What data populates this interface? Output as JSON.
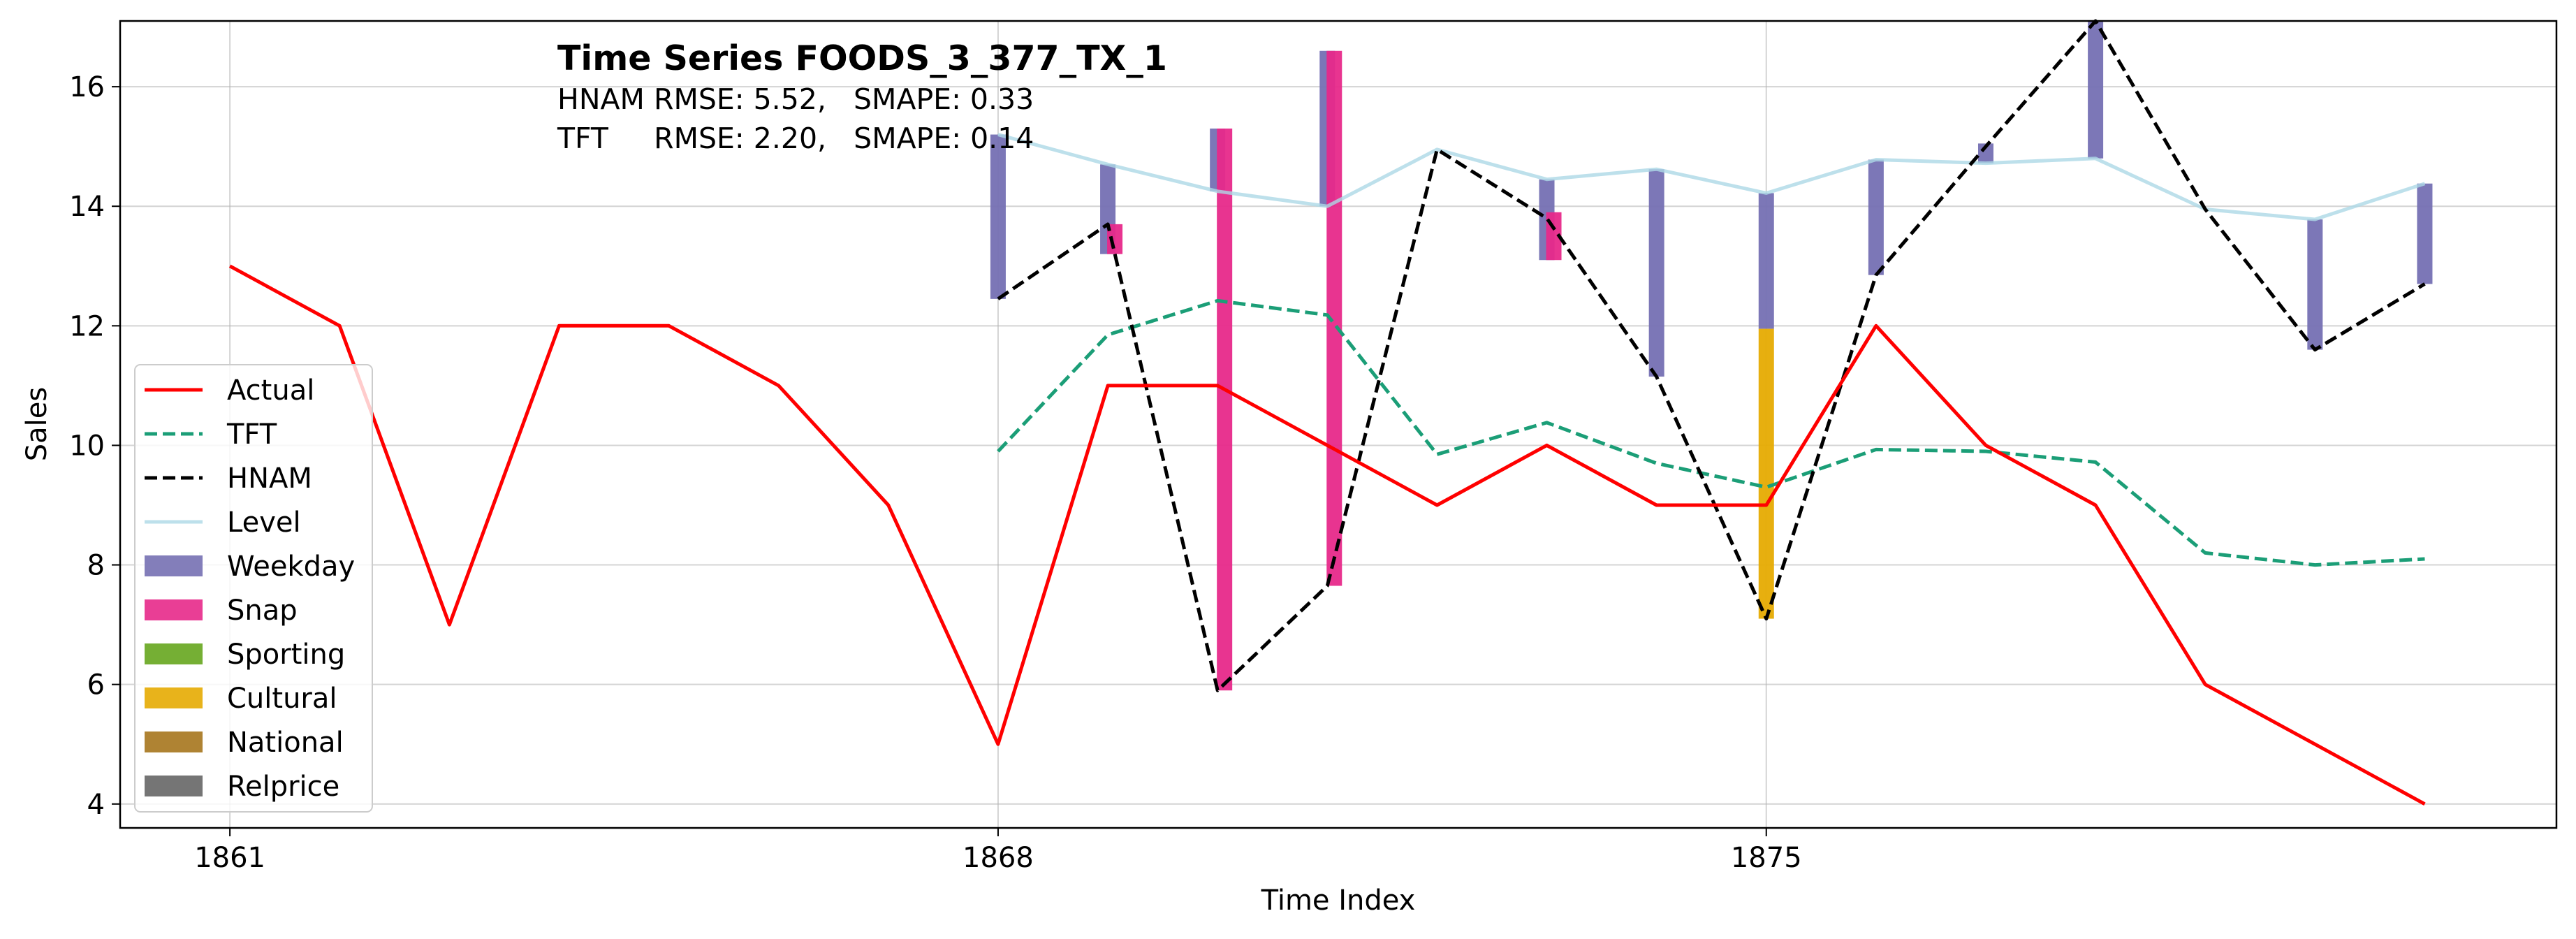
{
  "chart_data": {
    "type": "line",
    "title": "Time Series FOODS_3_377_TX_1",
    "subtitle_lines": [
      "HNAM RMSE: 5.52,   SMAPE: 0.33",
      "TFT     RMSE: 2.20,   SMAPE: 0.14"
    ],
    "xlabel": "Time Index",
    "ylabel": "Sales",
    "xlim": [
      1860.0,
      1882.2
    ],
    "ylim": [
      3.6,
      17.1
    ],
    "xticks": [
      1861,
      1868,
      1875
    ],
    "yticks": [
      4,
      6,
      8,
      10,
      12,
      14,
      16
    ],
    "grid": true,
    "legend_position": "lower-left",
    "series": [
      {
        "name": "Actual",
        "style": "solid",
        "color": "#ff0000",
        "x": [
          1861,
          1862,
          1863,
          1864,
          1865,
          1866,
          1867,
          1868,
          1869,
          1870,
          1871,
          1872,
          1873,
          1874,
          1875,
          1876,
          1877,
          1878,
          1879,
          1880,
          1881
        ],
        "y": [
          13,
          12,
          7,
          12,
          12,
          11,
          9,
          5,
          11,
          11,
          10,
          9,
          10,
          9,
          9,
          12,
          10,
          9,
          6,
          5,
          4
        ]
      },
      {
        "name": "TFT",
        "style": "dashed",
        "color": "#1b9e77",
        "x": [
          1868,
          1869,
          1870,
          1871,
          1872,
          1873,
          1874,
          1875,
          1876,
          1877,
          1878,
          1879,
          1880,
          1881
        ],
        "y": [
          9.9,
          11.85,
          12.42,
          12.18,
          9.85,
          10.38,
          9.7,
          9.3,
          9.93,
          9.9,
          9.72,
          8.2,
          8.0,
          8.1
        ]
      },
      {
        "name": "HNAM",
        "style": "dashed",
        "color": "#000000",
        "x": [
          1868,
          1869,
          1870,
          1871,
          1872,
          1873,
          1874,
          1875,
          1876,
          1877,
          1878,
          1879,
          1880,
          1881
        ],
        "y": [
          12.45,
          13.7,
          5.9,
          7.65,
          14.95,
          13.8,
          11.15,
          7.1,
          12.85,
          15.0,
          17.1,
          13.95,
          11.6,
          12.7
        ]
      },
      {
        "name": "Level",
        "style": "solid",
        "color": "#add8e6",
        "x": [
          1868,
          1869,
          1870,
          1871,
          1872,
          1873,
          1874,
          1875,
          1876,
          1877,
          1878,
          1879,
          1880,
          1881
        ],
        "y": [
          15.2,
          14.7,
          14.25,
          14.0,
          14.95,
          14.45,
          14.62,
          14.22,
          14.78,
          14.72,
          14.8,
          13.95,
          13.78,
          14.38
        ]
      }
    ],
    "components": [
      {
        "name": "Weekday",
        "color": "#7570b3"
      },
      {
        "name": "Snap",
        "color": "#e7298a"
      },
      {
        "name": "Sporting",
        "color": "#66a61e"
      },
      {
        "name": "Cultural",
        "color": "#e6ab02"
      },
      {
        "name": "National",
        "color": "#a6761d"
      },
      {
        "name": "Relprice",
        "color": "#666666"
      }
    ],
    "component_bars": [
      {
        "x": 1868,
        "component": "Weekday",
        "from": 15.2,
        "to": 12.45
      },
      {
        "x": 1869,
        "component": "Weekday",
        "from": 14.7,
        "to": 13.2
      },
      {
        "x": 1869,
        "component": "Snap",
        "from": 13.7,
        "to": 13.2
      },
      {
        "x": 1870,
        "component": "Weekday",
        "from": 14.25,
        "to": 15.3
      },
      {
        "x": 1870,
        "component": "Snap",
        "from": 15.3,
        "to": 5.9
      },
      {
        "x": 1871,
        "component": "Weekday",
        "from": 14.0,
        "to": 16.6
      },
      {
        "x": 1871,
        "component": "Snap",
        "from": 16.6,
        "to": 7.65
      },
      {
        "x": 1873,
        "component": "Weekday",
        "from": 14.45,
        "to": 13.1
      },
      {
        "x": 1873,
        "component": "Snap",
        "from": 13.9,
        "to": 13.1
      },
      {
        "x": 1874,
        "component": "Weekday",
        "from": 14.62,
        "to": 11.15
      },
      {
        "x": 1875,
        "component": "Weekday",
        "from": 14.22,
        "to": 11.95
      },
      {
        "x": 1875,
        "component": "Cultural",
        "from": 11.95,
        "to": 7.1
      },
      {
        "x": 1876,
        "component": "Weekday",
        "from": 14.78,
        "to": 12.85
      },
      {
        "x": 1877,
        "component": "Weekday",
        "from": 14.72,
        "to": 15.05
      },
      {
        "x": 1878,
        "component": "Weekday",
        "from": 14.8,
        "to": 17.1
      },
      {
        "x": 1880,
        "component": "Weekday",
        "from": 13.78,
        "to": 11.6
      },
      {
        "x": 1881,
        "component": "Weekday",
        "from": 14.38,
        "to": 12.7
      }
    ]
  }
}
